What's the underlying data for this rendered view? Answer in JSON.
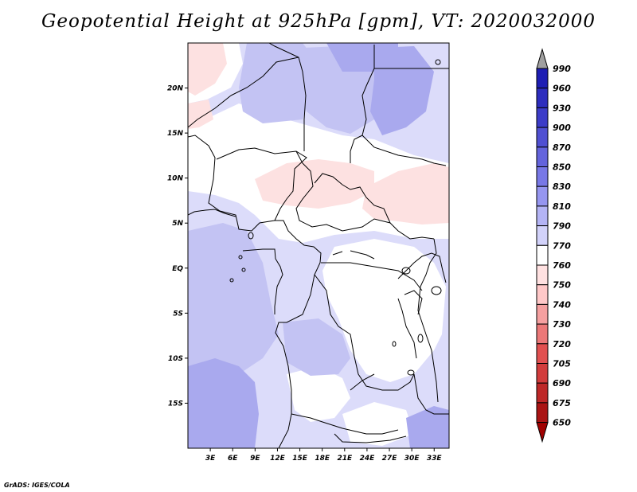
{
  "title": "Geopotential Height at 925hPa [gpm], VT: 2020032000",
  "credit": "GrADS: IGES/COLA",
  "map": {
    "lon_range": [
      0,
      35
    ],
    "lat_range": [
      -20,
      25
    ],
    "lat_labels": [
      "20N",
      "15N",
      "10N",
      "5N",
      "EQ",
      "5S",
      "10S",
      "15S"
    ],
    "lat_values": [
      20,
      15,
      10,
      5,
      0,
      -5,
      -10,
      -15
    ],
    "lon_labels": [
      "3E",
      "6E",
      "9E",
      "12E",
      "15E",
      "18E",
      "21E",
      "24E",
      "27E",
      "30E",
      "33E"
    ],
    "lon_values": [
      3,
      6,
      9,
      12,
      15,
      18,
      21,
      24,
      27,
      30,
      33
    ]
  },
  "colorbar": {
    "levels": [
      "990",
      "960",
      "930",
      "900",
      "870",
      "850",
      "830",
      "810",
      "790",
      "770",
      "760",
      "750",
      "740",
      "730",
      "720",
      "705",
      "690",
      "675",
      "650"
    ],
    "colors": [
      "#a0a0a0",
      "#1e1eb4",
      "#2d2dbe",
      "#3c3cc8",
      "#5050d2",
      "#6464dc",
      "#7878e6",
      "#9696f0",
      "#b4b4f5",
      "#d2d2fa",
      "#ffffff",
      "#ffe1e1",
      "#ffc8c8",
      "#f5a0a0",
      "#eb7878",
      "#e15050",
      "#d23c3c",
      "#be2828",
      "#aa1414",
      "#a00000"
    ]
  },
  "colors": {
    "land_white": "#ffffff",
    "light_blue": "#dcdcfa",
    "mid_blue": "#c3c3f3",
    "dark_blue": "#a9a9ee",
    "light_pink": "#fde1e1",
    "border": "#000000"
  }
}
